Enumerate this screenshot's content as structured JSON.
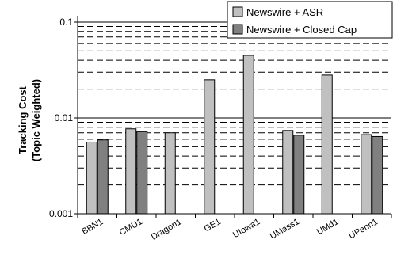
{
  "chart_data": {
    "type": "bar",
    "title": "",
    "xlabel": "",
    "ylabel_lines": [
      "Tracking Cost",
      "(Topic Weighted)"
    ],
    "yscale": "log",
    "ylim": [
      0.001,
      0.1
    ],
    "y_tick_labels": [
      "0.001",
      "0.01",
      "0.1"
    ],
    "grid": "dashed minor gridlines, solid major gridlines",
    "legend_position": "top-right",
    "categories": [
      "BBN1",
      "CMU1",
      "Dragon1",
      "GE1",
      "UIowa1",
      "UMass1",
      "UMd1",
      "UPenn1"
    ],
    "series": [
      {
        "name": "Newswire + ASR",
        "color": "#c0c0c0",
        "values": [
          0.0056,
          0.0077,
          0.007,
          0.025,
          0.045,
          0.0074,
          0.028,
          0.0067
        ]
      },
      {
        "name": "Newswire + Closed Cap",
        "color": "#808080",
        "values": [
          0.0059,
          0.0072,
          null,
          null,
          null,
          0.0066,
          null,
          0.0064
        ]
      }
    ]
  }
}
